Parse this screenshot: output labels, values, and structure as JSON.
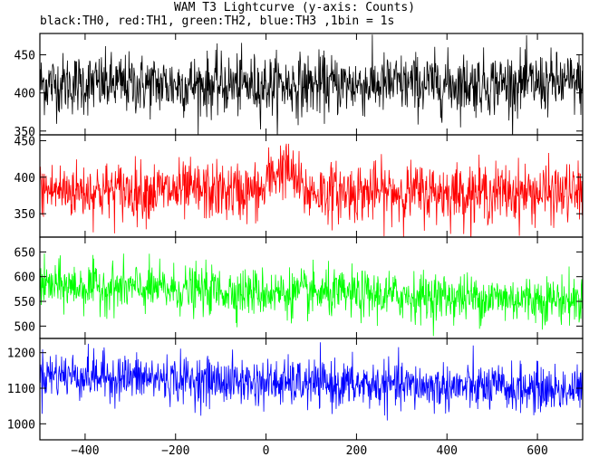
{
  "chart_data": {
    "type": "line",
    "title": "WAM T3 Lightcurve (y-axis: Counts)",
    "subtitle": "black:TH0, red:TH1, green:TH2, blue:TH3 ,1bin = 1s",
    "x_range": [
      -500,
      700
    ],
    "x_ticks": [
      -400,
      -200,
      0,
      200,
      400,
      600
    ],
    "bin_seconds": 1,
    "panels": [
      {
        "series": "TH0",
        "color": "#000000",
        "ylim": [
          345,
          478
        ],
        "y_ticks": [
          350,
          400,
          450
        ],
        "mean_profile": [
          [
            -500,
            412
          ],
          [
            0,
            410
          ],
          [
            700,
            413
          ]
        ],
        "noise_sd": 20,
        "burst": []
      },
      {
        "series": "TH1",
        "color": "#ff0000",
        "ylim": [
          318,
          458
        ],
        "y_ticks": [
          350,
          400,
          450
        ],
        "mean_profile": [
          [
            -500,
            382
          ],
          [
            0,
            380
          ],
          [
            700,
            378
          ]
        ],
        "noise_sd": 20,
        "burst": [
          [
            0,
            395
          ],
          [
            40,
            415
          ],
          [
            80,
            385
          ]
        ]
      },
      {
        "series": "TH2",
        "color": "#00ff00",
        "ylim": [
          475,
          680
        ],
        "y_ticks": [
          500,
          550,
          600,
          650
        ],
        "mean_profile": [
          [
            -500,
            582
          ],
          [
            0,
            568
          ],
          [
            700,
            552
          ]
        ],
        "noise_sd": 24,
        "burst": []
      },
      {
        "series": "TH3",
        "color": "#0000ff",
        "ylim": [
          955,
          1240
        ],
        "y_ticks": [
          1000,
          1100,
          1200
        ],
        "mean_profile": [
          [
            -500,
            1140
          ],
          [
            0,
            1115
          ],
          [
            700,
            1095
          ]
        ],
        "noise_sd": 33,
        "burst": []
      }
    ]
  }
}
